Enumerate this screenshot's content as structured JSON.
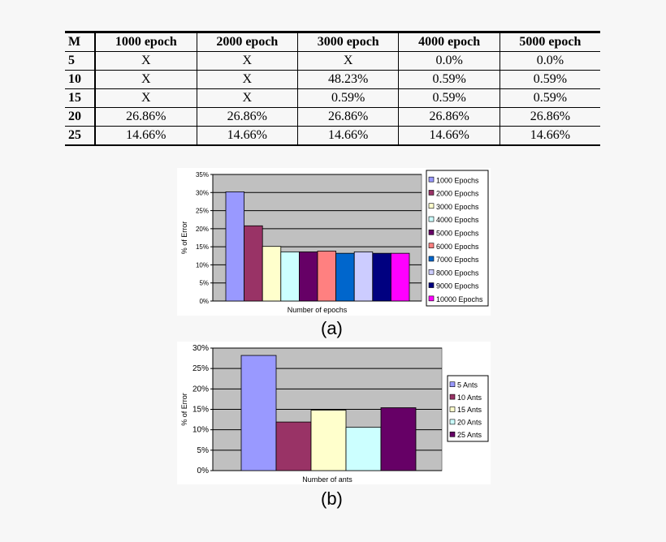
{
  "table": {
    "headers": [
      "M",
      "1000 epoch",
      "2000 epoch",
      "3000 epoch",
      "4000 epoch",
      "5000 epoch"
    ],
    "rows": [
      [
        "5",
        "X",
        "X",
        "X",
        "0.0%",
        "0.0%"
      ],
      [
        "10",
        "X",
        "X",
        "48.23%",
        "0.59%",
        "0.59%"
      ],
      [
        "15",
        "X",
        "X",
        "0.59%",
        "0.59%",
        "0.59%"
      ],
      [
        "20",
        "26.86%",
        "26.86%",
        "26.86%",
        "26.86%",
        "26.86%"
      ],
      [
        "25",
        "14.66%",
        "14.66%",
        "14.66%",
        "14.66%",
        "14.66%"
      ]
    ]
  },
  "captions": {
    "a": "(a)",
    "b": "(b)"
  },
  "chart_data": [
    {
      "type": "bar",
      "xlabel": "Number of epochs",
      "ylabel": "% of Error",
      "ylim": [
        0,
        35
      ],
      "yticks": [
        "0%",
        "5%",
        "10%",
        "15%",
        "20%",
        "25%",
        "30%",
        "35%"
      ],
      "grid": true,
      "legend_position": "right",
      "series": [
        {
          "name": "1000 Epochs",
          "value": 30.2,
          "color": "#9999ff"
        },
        {
          "name": "2000 Epochs",
          "value": 20.8,
          "color": "#993366"
        },
        {
          "name": "3000 Epochs",
          "value": 15.1,
          "color": "#ffffcc"
        },
        {
          "name": "4000 Epochs",
          "value": 13.6,
          "color": "#ccffff"
        },
        {
          "name": "5000 Epochs",
          "value": 13.6,
          "color": "#660066"
        },
        {
          "name": "6000 Epochs",
          "value": 13.8,
          "color": "#ff8080"
        },
        {
          "name": "7000 Epochs",
          "value": 13.2,
          "color": "#0066cc"
        },
        {
          "name": "8000 Epochs",
          "value": 13.6,
          "color": "#ccccff"
        },
        {
          "name": "9000 Epochs",
          "value": 13.2,
          "color": "#000080"
        },
        {
          "name": "10000 Epochs",
          "value": 13.2,
          "color": "#ff00ff"
        }
      ]
    },
    {
      "type": "bar",
      "xlabel": "Number of ants",
      "ylabel": "% of Error",
      "ylim": [
        0,
        30
      ],
      "yticks": [
        "0%",
        "5%",
        "10%",
        "15%",
        "20%",
        "25%",
        "30%"
      ],
      "grid": true,
      "legend_position": "right",
      "series": [
        {
          "name": "5 Ants",
          "value": 28.2,
          "color": "#9999ff"
        },
        {
          "name": "10 Ants",
          "value": 11.9,
          "color": "#993366"
        },
        {
          "name": "15 Ants",
          "value": 14.8,
          "color": "#ffffcc"
        },
        {
          "name": "20 Ants",
          "value": 10.6,
          "color": "#ccffff"
        },
        {
          "name": "25 Ants",
          "value": 15.4,
          "color": "#660066"
        }
      ]
    }
  ]
}
